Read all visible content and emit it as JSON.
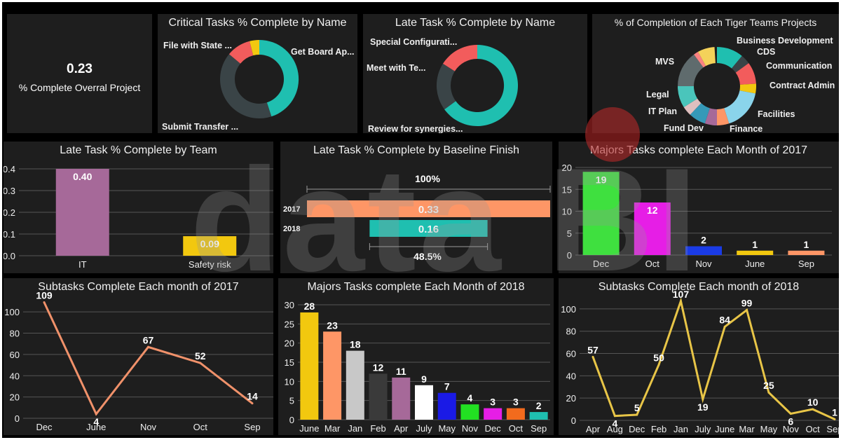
{
  "watermark": "data BI",
  "kpi": {
    "value": "0.23",
    "label": "% Complete Overral Project"
  },
  "critical": {
    "title": "Critical Tasks % Complete by Name",
    "labels": {
      "a": "Get Board Ap...",
      "b": "Submit Transfer ...",
      "c": "File with State ..."
    },
    "chart_data": {
      "type": "pie",
      "slices": [
        {
          "name": "Get Board Ap...",
          "value": 0.45,
          "color": "#1fbfb0"
        },
        {
          "name": "Submit Transfer ...",
          "value": 0.41,
          "color": "#3a4447"
        },
        {
          "name": "File with State ...",
          "value": 0.1,
          "color": "#f25c5c"
        },
        {
          "name": "",
          "value": 0.04,
          "color": "#f2c80f"
        }
      ]
    }
  },
  "late_name": {
    "title": "Late Task % Complete by Name",
    "labels": {
      "a": "Special Configurati...",
      "b": "Meet with Te...",
      "c": "Review for synergies..."
    },
    "chart_data": {
      "type": "pie",
      "slices": [
        {
          "name": "Review for synergies...",
          "value": 0.65,
          "color": "#1fbfb0"
        },
        {
          "name": "Meet with Te...",
          "value": 0.19,
          "color": "#3a4447"
        },
        {
          "name": "Special Configurati...",
          "value": 0.16,
          "color": "#f25c5c"
        }
      ]
    }
  },
  "tiger": {
    "title": "%  of Completion of Each Tiger Teams  Projects",
    "labels": {
      "bd": "Business Development",
      "cds": "CDS",
      "comm": "Communication",
      "ca": "Contract Admin",
      "fac": "Facilities",
      "fin": "Finance",
      "fd": "Fund Dev",
      "it": "IT Plan",
      "legal": "Legal",
      "mvs": "MVS"
    },
    "chart_data": {
      "type": "pie",
      "slices": [
        {
          "name": "Business Development",
          "value": 0.11,
          "color": "#1fbfb0"
        },
        {
          "name": "CDS",
          "value": 0.04,
          "color": "#3a4447"
        },
        {
          "name": "Communication",
          "value": 0.09,
          "color": "#f25c5c"
        },
        {
          "name": "Contract Admin",
          "value": 0.04,
          "color": "#f2c80f"
        },
        {
          "name": "Facilities",
          "value": 0.17,
          "color": "#8ad4eb"
        },
        {
          "name": "Finance",
          "value": 0.05,
          "color": "#fe9666"
        },
        {
          "name": "Fund Dev",
          "value": 0.05,
          "color": "#a66999"
        },
        {
          "name": "",
          "value": 0.07,
          "color": "#3599b8"
        },
        {
          "name": "IT Plan",
          "value": 0.04,
          "color": "#dfbfbf"
        },
        {
          "name": "Legal",
          "value": 0.09,
          "color": "#4ac5bb"
        },
        {
          "name": "MVS",
          "value": 0.15,
          "color": "#5f6b6d"
        },
        {
          "name": "",
          "value": 0.02,
          "color": "#fb8281"
        },
        {
          "name": "",
          "value": 0.07,
          "color": "#f4d25a"
        }
      ]
    }
  },
  "team": {
    "title": "Late Task % Complete by Team",
    "chart_data": {
      "type": "bar",
      "categories": [
        "IT",
        "Safety risk"
      ],
      "values": [
        0.4,
        0.09
      ],
      "value_labels": [
        "0.40",
        "0.09"
      ],
      "colors": [
        "#a66999",
        "#f2c80f"
      ],
      "ylim": [
        0,
        0.4
      ],
      "yticks": [
        "0.0",
        "0.1",
        "0.2",
        "0.3",
        "0.4"
      ],
      "grid": true
    }
  },
  "baseline": {
    "title": "Late Task % Complete by Baseline Finish",
    "target_label": "100%",
    "ratio_label": "48.5%",
    "chart_data": {
      "type": "bar",
      "orientation": "horizontal",
      "categories": [
        "2017",
        "2018"
      ],
      "values": [
        0.33,
        0.16
      ],
      "value_labels": [
        "0.33",
        "0.16"
      ],
      "colors": [
        "#fe9666",
        "#1fbfb0"
      ]
    }
  },
  "maj17": {
    "title": "Majors Tasks complete Each Month of 2017",
    "chart_data": {
      "type": "bar",
      "categories": [
        "Dec",
        "Oct",
        "Nov",
        "June",
        "Sep"
      ],
      "values": [
        19,
        12,
        2,
        1,
        1
      ],
      "colors": [
        "#3fe03f",
        "#e61ee6",
        "#1a3be6",
        "#f2c80f",
        "#fe9666"
      ],
      "ylim": [
        0,
        20
      ],
      "yticks": [
        "0",
        "5",
        "10",
        "15",
        "20"
      ],
      "grid": true
    }
  },
  "sub17": {
    "title": "Subtasks Complete Each month of 2017",
    "chart_data": {
      "type": "line",
      "categories": [
        "Dec",
        "June",
        "Nov",
        "Oct",
        "Sep"
      ],
      "values": [
        109,
        4,
        67,
        52,
        14
      ],
      "color": "#f0916a",
      "ylim": [
        0,
        110
      ],
      "yticks": [
        "0",
        "20",
        "40",
        "60",
        "80",
        "100"
      ],
      "grid": true
    }
  },
  "maj18": {
    "title": "Majors Tasks complete Each Month of 2018",
    "chart_data": {
      "type": "bar",
      "categories": [
        "June",
        "Mar",
        "Jan",
        "Feb",
        "Apr",
        "July",
        "May",
        "Nov",
        "Dec",
        "Oct",
        "Sep"
      ],
      "values": [
        28,
        23,
        18,
        12,
        11,
        9,
        7,
        4,
        3,
        3,
        2
      ],
      "colors": [
        "#f2c80f",
        "#fe9666",
        "#c8c8c8",
        "#3a3a3a",
        "#a66999",
        "#ffffff",
        "#1a1ae6",
        "#22e022",
        "#e61ee6",
        "#f26b1d",
        "#1fbfb0"
      ],
      "ylim": [
        0,
        30
      ],
      "yticks": [
        "0",
        "5",
        "10",
        "15",
        "20",
        "25",
        "30"
      ],
      "grid": true
    }
  },
  "sub18": {
    "title": "Subtasks Complete Each month of 2018",
    "chart_data": {
      "type": "line",
      "categories": [
        "Apr",
        "Aug",
        "Dec",
        "Feb",
        "Jan",
        "July",
        "June",
        "Mar",
        "May",
        "Nov",
        "Oct",
        "Sep"
      ],
      "values": [
        57,
        4,
        5,
        50,
        107,
        19,
        84,
        99,
        25,
        6,
        10,
        1
      ],
      "color": "#e8c547",
      "ylim": [
        0,
        110
      ],
      "yticks": [
        "0",
        "20",
        "40",
        "60",
        "80",
        "100"
      ],
      "grid": true
    }
  }
}
